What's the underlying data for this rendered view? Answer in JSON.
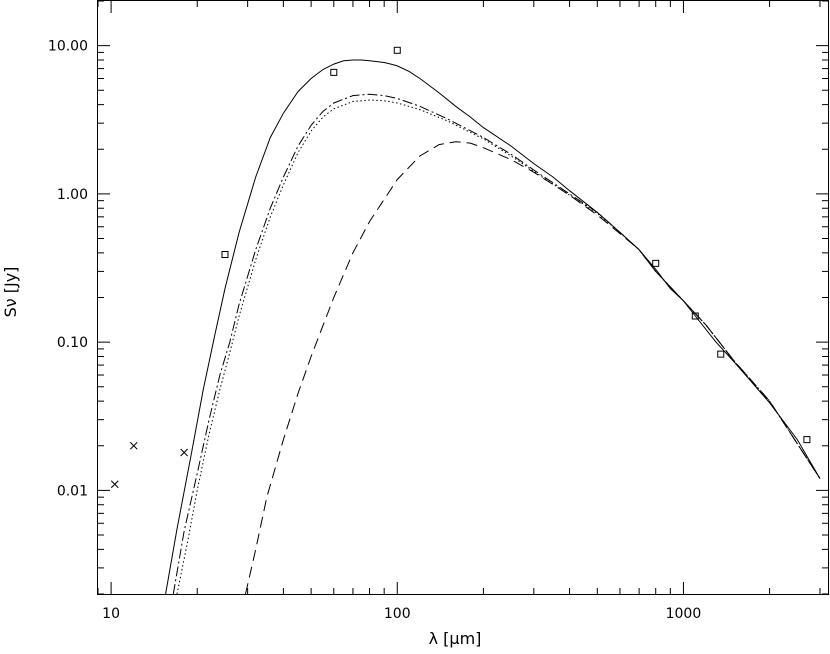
{
  "chart_data": {
    "type": "line",
    "xscale": "log",
    "yscale": "log",
    "xlim": [
      9,
      3200
    ],
    "ylim": [
      0.002,
      20
    ],
    "xlabel": "λ  [μm]",
    "ylabel": "Sν [Jy]",
    "title": "",
    "grid": false,
    "xticks": [
      {
        "value": 10,
        "label": "10"
      },
      {
        "value": 100,
        "label": "100"
      },
      {
        "value": 1000,
        "label": "1000"
      }
    ],
    "yticks": [
      {
        "value": 0.01,
        "label": "0.01"
      },
      {
        "value": 0.1,
        "label": "0.10"
      },
      {
        "value": 1,
        "label": "1.00"
      },
      {
        "value": 10,
        "label": "10.00"
      }
    ],
    "series": [
      {
        "style": "solid",
        "x": [
          15.5,
          17,
          19,
          21,
          23,
          25,
          28,
          32,
          36,
          40,
          45,
          50,
          55,
          60,
          65,
          70,
          75,
          80,
          85,
          90,
          95,
          100,
          110,
          120,
          140,
          160,
          180,
          200,
          250,
          300,
          350,
          400,
          500,
          600,
          700,
          800,
          900,
          1000,
          1100,
          1300,
          1500,
          2000,
          2500,
          3000
        ],
        "y": [
          0.002,
          0.0055,
          0.017,
          0.048,
          0.11,
          0.23,
          0.55,
          1.3,
          2.4,
          3.5,
          4.9,
          6.0,
          6.9,
          7.5,
          7.9,
          8.0,
          8.0,
          7.9,
          7.8,
          7.7,
          7.5,
          7.3,
          6.7,
          6.0,
          4.8,
          3.9,
          3.3,
          2.8,
          2.1,
          1.6,
          1.3,
          1.05,
          0.75,
          0.55,
          0.42,
          0.31,
          0.23,
          0.19,
          0.15,
          0.1,
          0.074,
          0.039,
          0.022,
          0.012
        ]
      },
      {
        "style": "dash-dot",
        "x": [
          16.5,
          18,
          20,
          22,
          24,
          26,
          28,
          32,
          36,
          40,
          45,
          50,
          55,
          60,
          70,
          80,
          90,
          100,
          120,
          150,
          200,
          250,
          300,
          400,
          500,
          600,
          700,
          800,
          1000,
          1200,
          1500,
          2000,
          3000
        ],
        "y": [
          0.002,
          0.0053,
          0.013,
          0.03,
          0.06,
          0.1,
          0.18,
          0.42,
          0.8,
          1.3,
          2.1,
          2.9,
          3.6,
          4.1,
          4.6,
          4.7,
          4.6,
          4.4,
          3.9,
          3.2,
          2.4,
          1.85,
          1.45,
          1.0,
          0.75,
          0.55,
          0.42,
          0.3,
          0.19,
          0.13,
          0.075,
          0.04,
          0.012
        ]
      },
      {
        "style": "dotted",
        "x": [
          17,
          18.5,
          20,
          22,
          24,
          26,
          28,
          32,
          36,
          40,
          45,
          50,
          55,
          60,
          70,
          80,
          90,
          100,
          120,
          150,
          200,
          250,
          300,
          400,
          500,
          600,
          700,
          800,
          1000,
          1200,
          1500,
          2000,
          3000
        ],
        "y": [
          0.002,
          0.0045,
          0.01,
          0.024,
          0.048,
          0.085,
          0.15,
          0.36,
          0.7,
          1.15,
          1.9,
          2.65,
          3.3,
          3.75,
          4.2,
          4.3,
          4.25,
          4.1,
          3.7,
          3.1,
          2.35,
          1.8,
          1.42,
          0.98,
          0.74,
          0.55,
          0.42,
          0.3,
          0.19,
          0.13,
          0.075,
          0.04,
          0.012
        ]
      },
      {
        "style": "dashed",
        "x": [
          29.5,
          32,
          35,
          40,
          45,
          50,
          60,
          70,
          80,
          100,
          120,
          140,
          160,
          180,
          200,
          250,
          300,
          400,
          500,
          600,
          700,
          800,
          1000,
          1200,
          1500,
          2000,
          3000
        ],
        "y": [
          0.002,
          0.004,
          0.009,
          0.022,
          0.045,
          0.08,
          0.2,
          0.4,
          0.65,
          1.25,
          1.8,
          2.15,
          2.25,
          2.2,
          2.05,
          1.7,
          1.4,
          0.98,
          0.72,
          0.54,
          0.42,
          0.3,
          0.19,
          0.13,
          0.075,
          0.04,
          0.012
        ]
      }
    ],
    "points_square": [
      {
        "x": 25,
        "y": 0.39
      },
      {
        "x": 60,
        "y": 6.6
      },
      {
        "x": 100,
        "y": 9.3
      },
      {
        "x": 800,
        "y": 0.34
      },
      {
        "x": 1100,
        "y": 0.15
      },
      {
        "x": 1350,
        "y": 0.083
      },
      {
        "x": 2700,
        "y": 0.022
      }
    ],
    "points_cross": [
      {
        "x": 10.3,
        "y": 0.011
      },
      {
        "x": 12,
        "y": 0.02
      },
      {
        "x": 18,
        "y": 0.018
      }
    ]
  }
}
